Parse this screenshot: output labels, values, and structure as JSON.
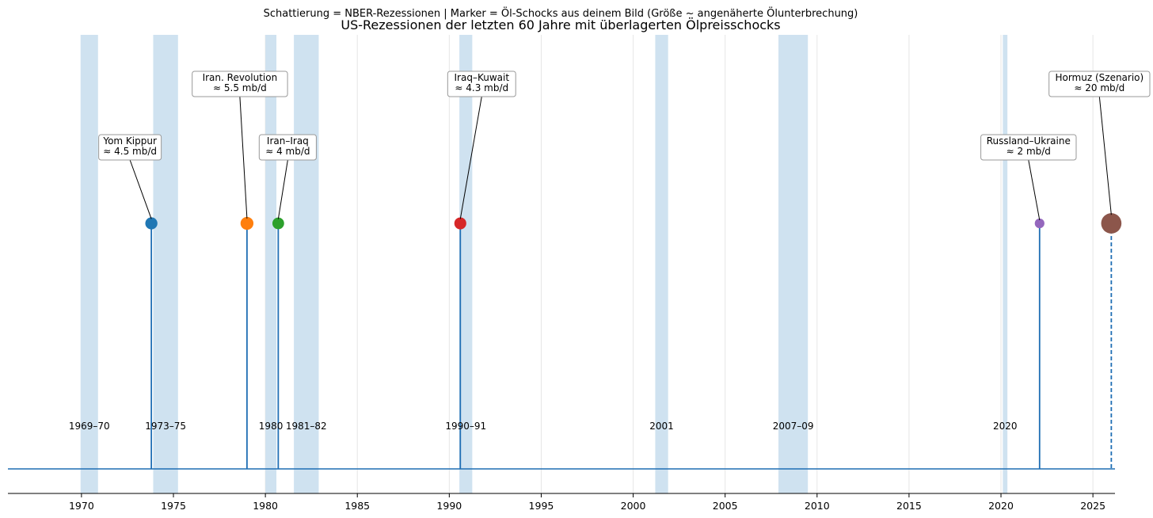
{
  "chart_data": {
    "type": "scatter",
    "subtitle": "Schattierung = NBER-Rezessionen | Marker = Öl-Schocks aus deinem Bild (Größe ~ angenäherte Ölunterbrechung)",
    "title": "US-Rezessionen der letzten 60 Jahre mit überlagerten Ölpreisschocks",
    "xlim": [
      1966.0,
      2026.2
    ],
    "ylim": [
      0,
      1
    ],
    "xticks": [
      1970,
      1975,
      1980,
      1985,
      1990,
      1995,
      2000,
      2005,
      2010,
      2015,
      2020,
      2025
    ],
    "grid": true,
    "recessions": [
      {
        "label": "1969–70",
        "start": 1969.95,
        "end": 1970.9
      },
      {
        "label": "1973–75",
        "start": 1973.9,
        "end": 1975.25
      },
      {
        "label": "1980",
        "start": 1980.0,
        "end": 1980.6
      },
      {
        "label": "1981–82",
        "start": 1981.55,
        "end": 1982.9
      },
      {
        "label": "1990–91",
        "start": 1990.55,
        "end": 1991.25
      },
      {
        "label": "2001",
        "start": 2001.2,
        "end": 2001.9
      },
      {
        "label": "2007–09",
        "start": 2007.9,
        "end": 2009.5
      },
      {
        "label": "2020",
        "start": 2020.1,
        "end": 2020.35
      }
    ],
    "shocks": [
      {
        "name": "Yom Kippur",
        "year": 1973.8,
        "mbd": 4.5,
        "mbd_label": "≈ 4.5 mb/d",
        "color": "#1f77b4",
        "dashed": false
      },
      {
        "name": "Iran. Revolution",
        "year": 1979.0,
        "mbd": 5.5,
        "mbd_label": "≈ 5.5 mb/d",
        "color": "#ff7f0e",
        "dashed": false
      },
      {
        "name": "Iran–Iraq",
        "year": 1980.7,
        "mbd": 4,
        "mbd_label": "≈ 4 mb/d",
        "color": "#2ca02c",
        "dashed": false
      },
      {
        "name": "Iraq–Kuwait",
        "year": 1990.6,
        "mbd": 4.3,
        "mbd_label": "≈ 4.3 mb/d",
        "color": "#d62728",
        "dashed": false
      },
      {
        "name": "Russland–Ukraine",
        "year": 2022.1,
        "mbd": 2,
        "mbd_label": "≈ 2 mb/d",
        "color": "#9467bd",
        "dashed": false
      },
      {
        "name": "Hormuz (Szenario)",
        "year": 2026.0,
        "mbd": 20,
        "mbd_label": "≈ 20 mb/d",
        "color": "#8c564b",
        "dashed": true
      }
    ],
    "colors": {
      "recession_shade": "#cfe2f0",
      "stem": "#1f6eb4",
      "grid": "#e6e6e6"
    }
  }
}
